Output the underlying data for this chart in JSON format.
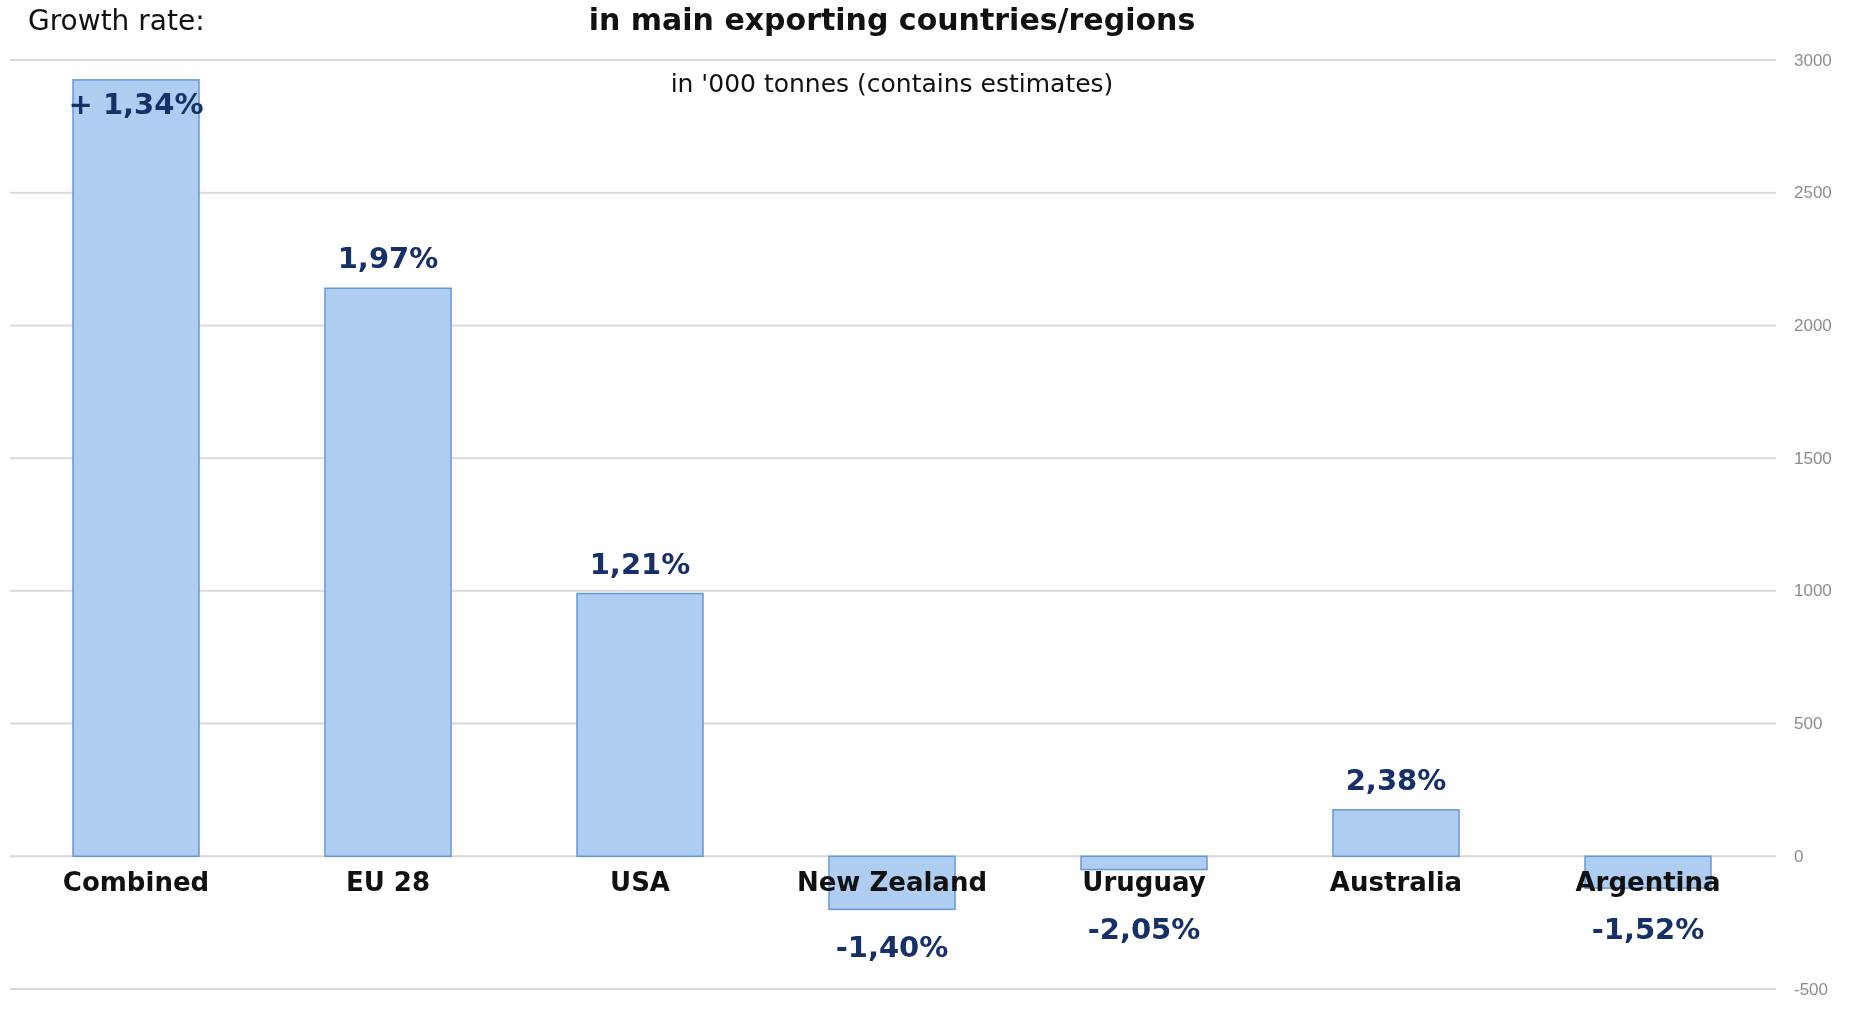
{
  "chart_data": {
    "type": "bar",
    "title": "in main exporting countries/regions",
    "subtitle": "in '000 tonnes (contains estimates)",
    "annotations": [
      "Growth rate:",
      {
        "text": "+ 1,34%",
        "x": "Combined",
        "y": 2925
      },
      {
        "text": "1,97%",
        "x": "EU 28",
        "y": 2140
      },
      {
        "text": "1,21%",
        "x": "USA",
        "y": 990
      },
      {
        "text": "-1,40%",
        "x": "New Zealand",
        "y": -200
      },
      {
        "text": "-2,05%",
        "x": "Uruguay",
        "y": -50
      },
      {
        "text": "2,38%",
        "x": "Australia",
        "y": 175
      },
      {
        "text": "-1,52%",
        "x": "Argentina",
        "y": -120
      }
    ],
    "categories": [
      "Combined",
      "EU 28",
      "USA",
      "New Zealand",
      "Uruguay",
      "Australia",
      "Argentina"
    ],
    "values": [
      2925,
      2140,
      990,
      -200,
      -50,
      175,
      -120
    ],
    "color": "#aecdf1",
    "ylim": [
      -500,
      3000
    ],
    "yticks": [
      -500,
      0,
      500,
      1000,
      1500,
      2000,
      2500,
      3000
    ],
    "grid": "y"
  }
}
